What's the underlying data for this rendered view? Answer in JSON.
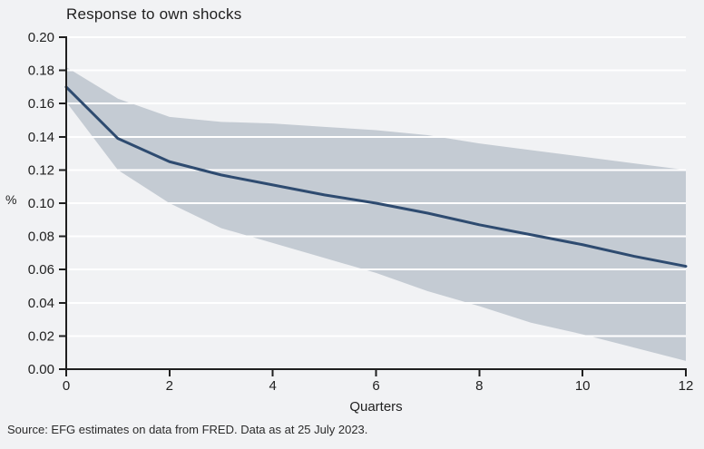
{
  "title": "Response to own shocks",
  "source": "Source: EFG estimates on data from FRED. Data as at 25 July 2023.",
  "colors": {
    "background": "#f1f2f4",
    "band": "#c4cbd3",
    "line": "#2e4b70",
    "axis": "#1f1f1f",
    "grid": "#ffffff",
    "tick_text": "#1f1f1f",
    "source_text": "#2b2b2b"
  },
  "chart_data": {
    "type": "line",
    "title": "Response to own shocks",
    "xlabel": "Quarters",
    "ylabel": "%",
    "x": [
      0,
      1,
      2,
      3,
      4,
      5,
      6,
      7,
      8,
      9,
      10,
      11,
      12
    ],
    "series": [
      {
        "name": "response",
        "values": [
          0.17,
          0.139,
          0.125,
          0.117,
          0.111,
          0.105,
          0.1,
          0.094,
          0.087,
          0.081,
          0.075,
          0.068,
          0.062
        ]
      },
      {
        "name": "band_upper",
        "values": [
          0.182,
          0.163,
          0.152,
          0.149,
          0.148,
          0.146,
          0.144,
          0.141,
          0.136,
          0.132,
          0.128,
          0.124,
          0.12
        ]
      },
      {
        "name": "band_lower",
        "values": [
          0.161,
          0.12,
          0.1,
          0.085,
          0.076,
          0.067,
          0.058,
          0.047,
          0.038,
          0.028,
          0.021,
          0.013,
          0.005
        ]
      }
    ],
    "xlim": [
      0,
      12
    ],
    "ylim": [
      0.0,
      0.2
    ],
    "x_ticks": {
      "values": [
        0,
        2,
        4,
        6,
        8,
        10,
        12
      ],
      "labels": [
        "0",
        "2",
        "4",
        "6",
        "8",
        "10",
        "12"
      ]
    },
    "y_ticks": {
      "values": [
        0,
        0.02,
        0.04,
        0.06,
        0.08,
        0.1,
        0.12,
        0.14,
        0.16,
        0.18,
        0.2
      ],
      "labels": [
        "0.00",
        "0.02",
        "0.04",
        "0.06",
        "0.08",
        "0.10",
        "0.12",
        "0.14",
        "0.16",
        "0.18",
        "0.20"
      ]
    },
    "grid": true,
    "legend": false
  }
}
